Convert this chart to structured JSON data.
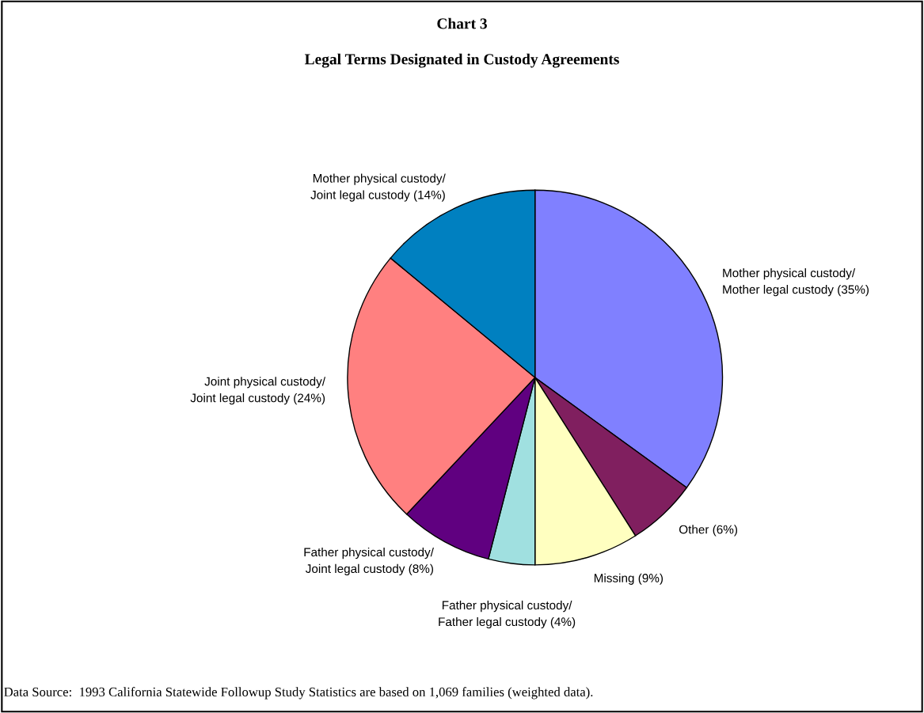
{
  "chart_data": {
    "type": "pie",
    "title": "Chart 3",
    "subtitle": "Legal Terms Designated in Custody Agreements",
    "categories": [
      "Mother physical custody/\nMother legal custody (35%)",
      "Other (6%)",
      "Missing (9%)",
      "Father physical custody/\nFather legal custody (4%)",
      "Father physical custody/\nJoint legal custody (8%)",
      "Joint physical custody/\nJoint legal custody (24%)",
      "Mother physical custody/\nJoint legal custody (14%)"
    ],
    "values": [
      35,
      6,
      9,
      4,
      8,
      24,
      14
    ],
    "colors": [
      "#8080ff",
      "#801f5f",
      "#ffffc0",
      "#a0e0e0",
      "#600080",
      "#ff8080",
      "#0080c0"
    ],
    "annotations": [
      "Data Source:  1993 California Statewide Followup Study Statistics are based on 1,069 families (weighted data)."
    ]
  }
}
